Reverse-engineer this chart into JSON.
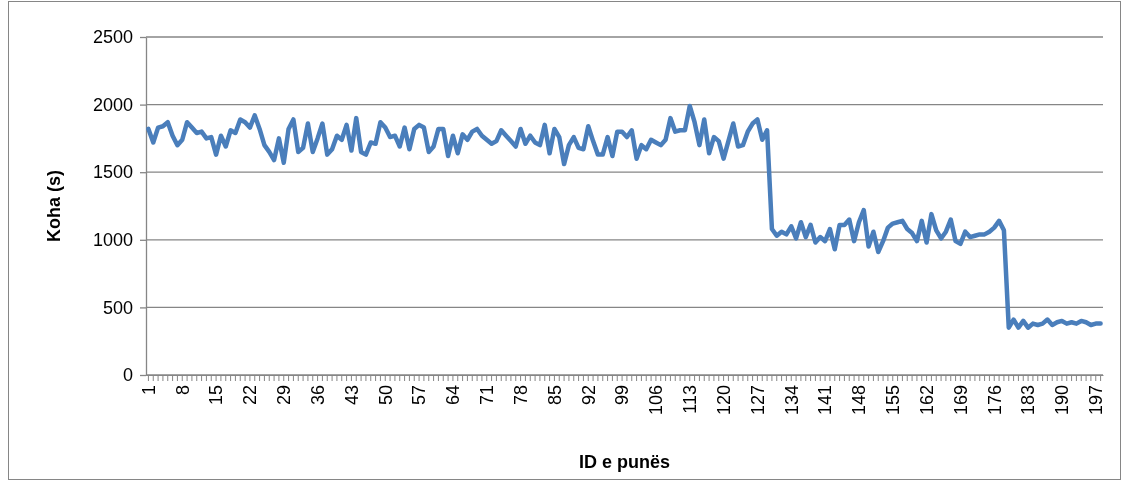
{
  "chart_data": {
    "type": "line",
    "xlabel": "ID e punës",
    "ylabel": "Koha (s)",
    "categories": [
      "1",
      null,
      null,
      null,
      null,
      null,
      null,
      "8",
      null,
      null,
      null,
      null,
      null,
      null,
      "15",
      null,
      null,
      null,
      null,
      null,
      null,
      "22",
      null,
      null,
      null,
      null,
      null,
      null,
      "29",
      null,
      null,
      null,
      null,
      null,
      null,
      "36",
      null,
      null,
      null,
      null,
      null,
      null,
      "43",
      null,
      null,
      null,
      null,
      null,
      null,
      "50",
      null,
      null,
      null,
      null,
      null,
      null,
      "57",
      null,
      null,
      null,
      null,
      null,
      null,
      "64",
      null,
      null,
      null,
      null,
      null,
      null,
      "71",
      null,
      null,
      null,
      null,
      null,
      null,
      "78",
      null,
      null,
      null,
      null,
      null,
      null,
      "85",
      null,
      null,
      null,
      null,
      null,
      null,
      "92",
      null,
      null,
      null,
      null,
      null,
      null,
      "99",
      null,
      null,
      null,
      null,
      null,
      null,
      "106",
      null,
      null,
      null,
      null,
      null,
      null,
      "113",
      null,
      null,
      null,
      null,
      null,
      null,
      "120",
      null,
      null,
      null,
      null,
      null,
      null,
      "127",
      null,
      null,
      null,
      null,
      null,
      null,
      "134",
      null,
      null,
      null,
      null,
      null,
      null,
      "141",
      null,
      null,
      null,
      null,
      null,
      null,
      "148",
      null,
      null,
      null,
      null,
      null,
      null,
      "155",
      null,
      null,
      null,
      null,
      null,
      null,
      "162",
      null,
      null,
      null,
      null,
      null,
      null,
      "169",
      null,
      null,
      null,
      null,
      null,
      null,
      "176",
      null,
      null,
      null,
      null,
      null,
      null,
      "183",
      null,
      null,
      null,
      null,
      null,
      null,
      "190",
      null,
      null,
      null,
      null,
      null,
      null,
      "197",
      null
    ],
    "series": [
      {
        "color": "#4a7ebb",
        "values": [
          1820,
          1720,
          1830,
          1840,
          1870,
          1770,
          1700,
          1740,
          1870,
          1830,
          1790,
          1800,
          1750,
          1760,
          1630,
          1770,
          1690,
          1810,
          1790,
          1890,
          1870,
          1830,
          1920,
          1820,
          1700,
          1650,
          1590,
          1750,
          1570,
          1820,
          1890,
          1650,
          1680,
          1860,
          1650,
          1750,
          1860,
          1630,
          1670,
          1770,
          1740,
          1850,
          1660,
          1900,
          1650,
          1630,
          1720,
          1710,
          1870,
          1830,
          1760,
          1770,
          1690,
          1830,
          1670,
          1820,
          1850,
          1830,
          1650,
          1690,
          1820,
          1820,
          1620,
          1770,
          1640,
          1780,
          1740,
          1800,
          1820,
          1770,
          1740,
          1710,
          1730,
          1810,
          1770,
          1730,
          1690,
          1820,
          1710,
          1770,
          1720,
          1700,
          1850,
          1640,
          1820,
          1760,
          1560,
          1700,
          1760,
          1680,
          1670,
          1840,
          1730,
          1630,
          1630,
          1760,
          1620,
          1800,
          1800,
          1760,
          1810,
          1600,
          1700,
          1670,
          1740,
          1720,
          1700,
          1740,
          1900,
          1800,
          1810,
          1810,
          1990,
          1870,
          1700,
          1890,
          1640,
          1760,
          1730,
          1600,
          1730,
          1860,
          1690,
          1700,
          1800,
          1860,
          1890,
          1740,
          1810,
          1080,
          1030,
          1060,
          1040,
          1100,
          1010,
          1130,
          1020,
          1110,
          980,
          1020,
          990,
          1080,
          930,
          1110,
          1110,
          1150,
          990,
          1130,
          1220,
          950,
          1060,
          910,
          990,
          1090,
          1120,
          1130,
          1140,
          1080,
          1050,
          990,
          1140,
          980,
          1190,
          1070,
          1010,
          1060,
          1150,
          990,
          970,
          1060,
          1020,
          1030,
          1040,
          1040,
          1060,
          1090,
          1140,
          1070,
          350,
          410,
          350,
          400,
          350,
          380,
          370,
          380,
          410,
          370,
          390,
          400,
          380,
          390,
          380,
          400,
          390,
          370,
          380,
          380
        ]
      }
    ],
    "ylim": [
      0,
      2500
    ],
    "yticks": [
      0,
      500,
      1000,
      1500,
      2000,
      2500
    ],
    "grid": "y",
    "line_style": "solid",
    "marker": "none"
  }
}
